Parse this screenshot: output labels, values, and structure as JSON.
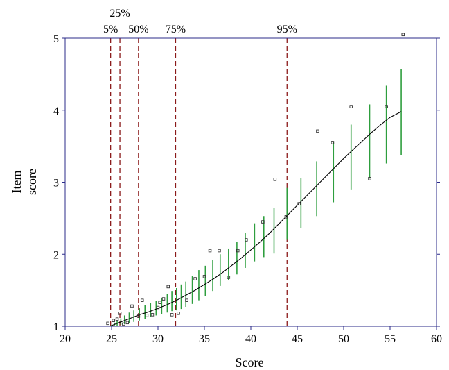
{
  "chart_data": {
    "type": "scatter",
    "title": "",
    "xlabel": "Score",
    "ylabel": [
      "Item",
      "score"
    ],
    "xlim": [
      20,
      60
    ],
    "ylim": [
      1,
      5
    ],
    "xticks": [
      20,
      25,
      30,
      35,
      40,
      45,
      50,
      55,
      60
    ],
    "yticks": [
      1,
      2,
      3,
      4,
      5
    ],
    "grid": false,
    "colors": {
      "axis": "#2b2b8a",
      "percentile_line": "#8b1a1a",
      "error_bar": "#2e9e3e",
      "fit_line": "#000000",
      "point": "#333333"
    },
    "percentiles": [
      {
        "label": "5%",
        "x": 24.9,
        "row": 2
      },
      {
        "label": "25%",
        "x": 25.9,
        "row": 1
      },
      {
        "label": "50%",
        "x": 27.9,
        "row": 2
      },
      {
        "label": "75%",
        "x": 31.9,
        "row": 2
      },
      {
        "label": "95%",
        "x": 43.9,
        "row": 2
      }
    ],
    "observed_points": {
      "x": [
        24.6,
        25.2,
        25.6,
        25.9,
        26.3,
        26.7,
        27.2,
        27.9,
        28.3,
        28.8,
        29.4,
        30.0,
        30.2,
        30.6,
        31.1,
        31.5,
        32.2,
        33.1,
        34.0,
        35.0,
        35.6,
        36.6,
        37.6,
        38.6,
        39.5,
        41.3,
        42.6,
        43.8,
        45.2,
        47.2,
        48.8,
        50.8,
        52.8,
        54.6,
        56.4
      ],
      "y": [
        1.04,
        1.08,
        1.1,
        1.18,
        1.03,
        1.05,
        1.28,
        1.14,
        1.36,
        1.15,
        1.16,
        1.26,
        1.33,
        1.38,
        1.55,
        1.16,
        1.18,
        1.36,
        1.66,
        1.69,
        2.05,
        2.05,
        1.68,
        2.05,
        2.2,
        2.45,
        3.04,
        2.52,
        2.7,
        3.71,
        3.55,
        4.05,
        3.05,
        4.05,
        5.05
      ]
    },
    "fit_curve": {
      "x": [
        25,
        26,
        27,
        28,
        29,
        30,
        31,
        32,
        33,
        34,
        35,
        36,
        37,
        38,
        39,
        40,
        41,
        42,
        43,
        44,
        45,
        46,
        47,
        48,
        49,
        50,
        51,
        52,
        53,
        54,
        55,
        56.2
      ],
      "y": [
        1.01,
        1.06,
        1.11,
        1.16,
        1.2,
        1.25,
        1.3,
        1.36,
        1.43,
        1.5,
        1.58,
        1.66,
        1.75,
        1.85,
        1.95,
        2.06,
        2.17,
        2.29,
        2.42,
        2.55,
        2.68,
        2.81,
        2.94,
        3.07,
        3.2,
        3.33,
        3.45,
        3.57,
        3.69,
        3.8,
        3.9,
        3.98
      ]
    },
    "error_bars": {
      "x": [
        25.0,
        25.3,
        25.6,
        26.0,
        26.4,
        26.9,
        27.4,
        28.0,
        28.6,
        29.2,
        29.8,
        30.4,
        31.0,
        31.5,
        32.0,
        32.5,
        33.0,
        33.7,
        34.4,
        35.1,
        35.9,
        36.7,
        37.6,
        38.5,
        39.4,
        40.4,
        41.4,
        42.5,
        43.9,
        45.4,
        47.1,
        48.9,
        50.8,
        52.8,
        54.6,
        56.2
      ],
      "lower": [
        1.0,
        1.0,
        1.01,
        1.02,
        1.03,
        1.04,
        1.06,
        1.08,
        1.1,
        1.13,
        1.15,
        1.17,
        1.19,
        1.21,
        1.22,
        1.24,
        1.27,
        1.31,
        1.36,
        1.42,
        1.49,
        1.56,
        1.64,
        1.72,
        1.81,
        1.9,
        1.96,
        2.01,
        2.2,
        2.36,
        2.53,
        2.72,
        2.9,
        3.05,
        3.26,
        3.38
      ],
      "upper": [
        1.02,
        1.05,
        1.07,
        1.11,
        1.15,
        1.19,
        1.22,
        1.25,
        1.29,
        1.32,
        1.35,
        1.39,
        1.45,
        1.49,
        1.53,
        1.58,
        1.62,
        1.7,
        1.78,
        1.84,
        1.92,
        2.0,
        2.08,
        2.17,
        2.3,
        2.43,
        2.53,
        2.64,
        2.92,
        3.06,
        3.29,
        3.56,
        3.8,
        4.08,
        4.34,
        4.57
      ]
    }
  }
}
